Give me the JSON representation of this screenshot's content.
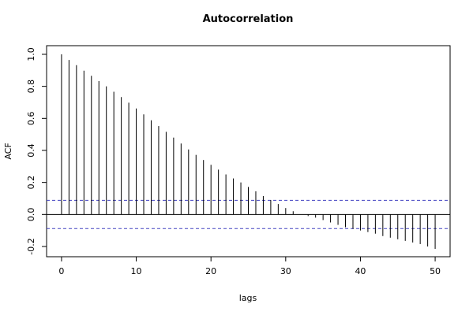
{
  "chart_data": {
    "type": "bar",
    "title": "Autocorrelation",
    "xlabel": "lags",
    "ylabel": "ACF",
    "x": [
      0,
      1,
      2,
      3,
      4,
      5,
      6,
      7,
      8,
      9,
      10,
      11,
      12,
      13,
      14,
      15,
      16,
      17,
      18,
      19,
      20,
      21,
      22,
      23,
      24,
      25,
      26,
      27,
      28,
      29,
      30,
      31,
      32,
      33,
      34,
      35,
      36,
      37,
      38,
      39,
      40,
      41,
      42,
      43,
      44,
      45,
      46,
      47,
      48,
      49,
      50
    ],
    "values": [
      1.0,
      0.965,
      0.932,
      0.898,
      0.866,
      0.833,
      0.8,
      0.766,
      0.733,
      0.698,
      0.662,
      0.625,
      0.588,
      0.552,
      0.516,
      0.48,
      0.443,
      0.406,
      0.372,
      0.34,
      0.31,
      0.28,
      0.25,
      0.225,
      0.2,
      0.172,
      0.145,
      0.115,
      0.09,
      0.065,
      0.04,
      0.02,
      0.0,
      -0.01,
      -0.02,
      -0.035,
      -0.05,
      -0.065,
      -0.08,
      -0.09,
      -0.1,
      -0.11,
      -0.12,
      -0.135,
      -0.145,
      -0.155,
      -0.165,
      -0.175,
      -0.185,
      -0.2,
      -0.215
    ],
    "color": "#000000",
    "confidence_bounds": [
      0.088,
      -0.088
    ],
    "confidence_color": "#4040c0",
    "xlim": [
      -2,
      52
    ],
    "ylim": [
      -0.264,
      1.054
    ],
    "xticks": [
      0,
      10,
      20,
      30,
      40,
      50
    ],
    "yticks": [
      {
        "value": -0.2,
        "label": "-0.2"
      },
      {
        "value": 0,
        "label": "0.0"
      },
      {
        "value": 0.2,
        "label": "0.2"
      },
      {
        "value": 0.4,
        "label": "0.4"
      },
      {
        "value": 0.6,
        "label": "0.6"
      },
      {
        "value": 0.8,
        "label": "0.8"
      },
      {
        "value": 1,
        "label": "1.0"
      }
    ]
  }
}
